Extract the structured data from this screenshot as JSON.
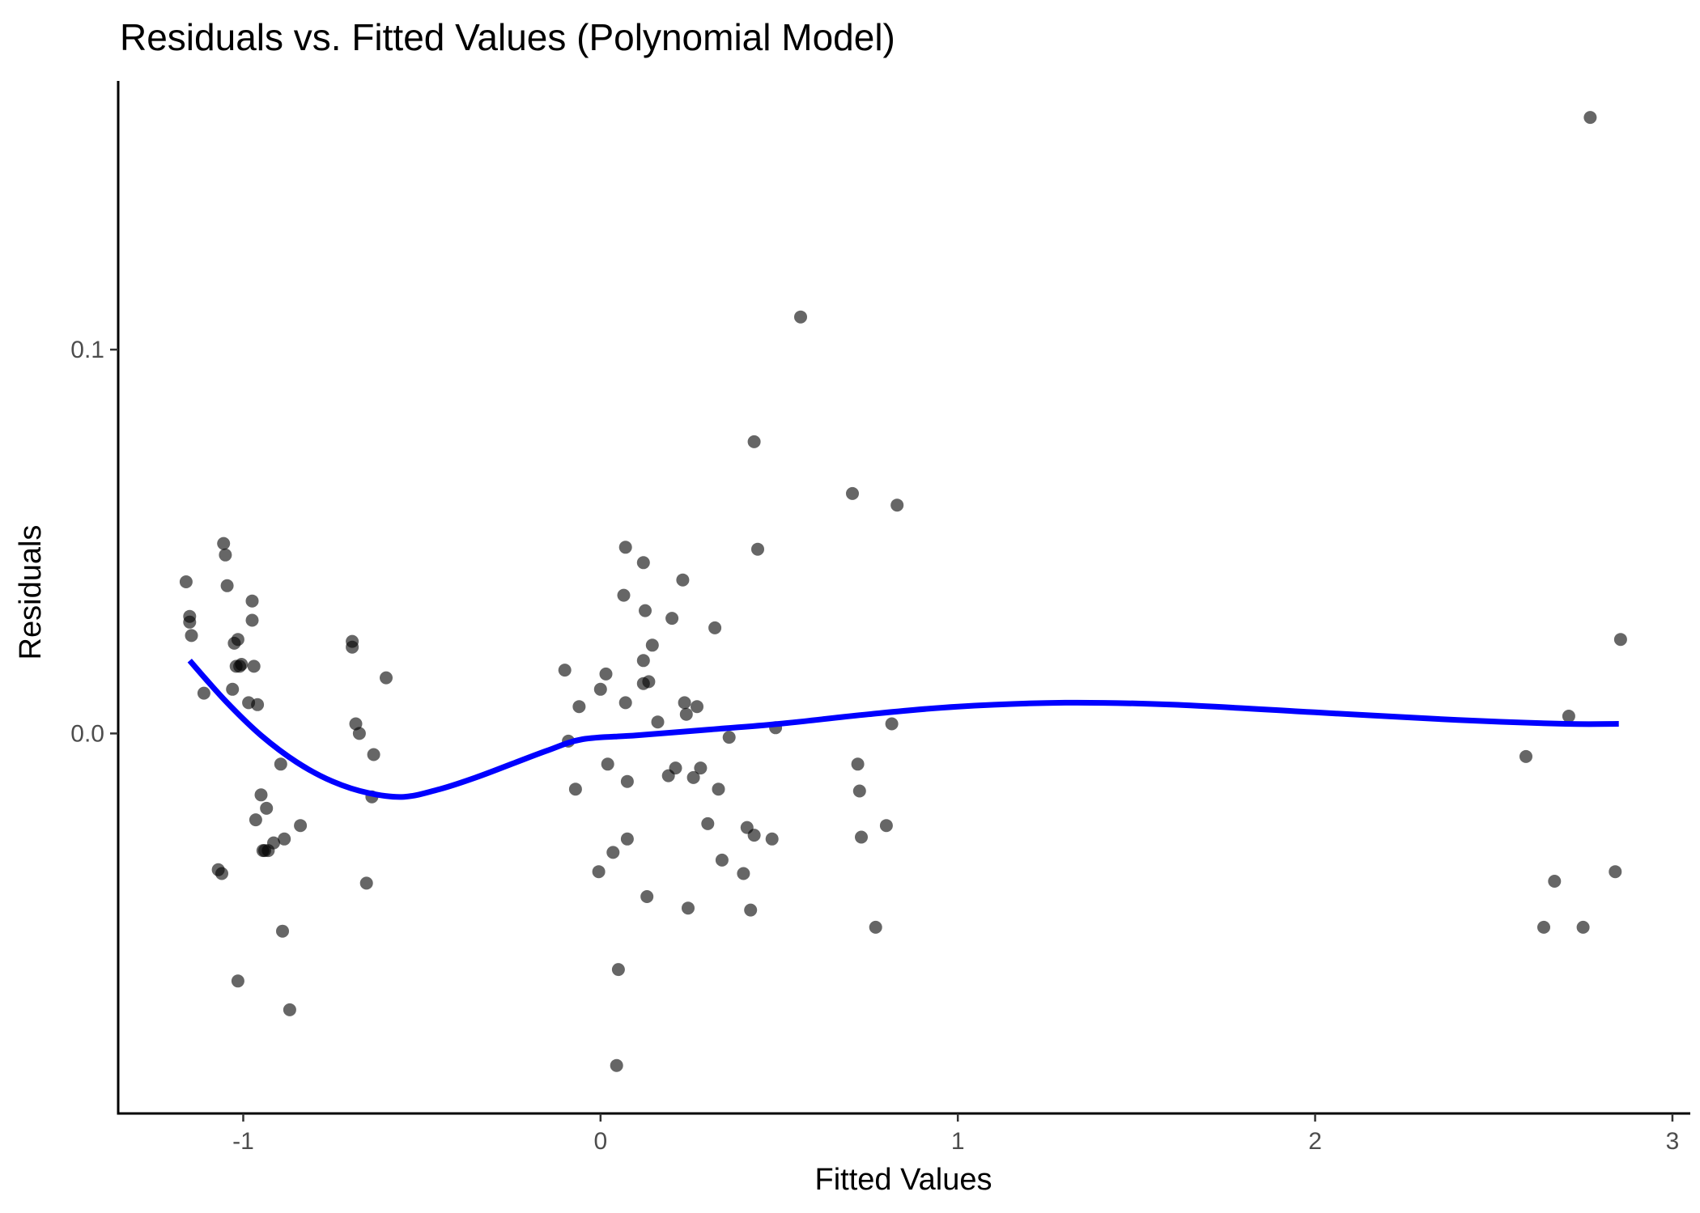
{
  "chart_data": {
    "type": "scatter",
    "title": "Residuals vs. Fitted Values (Polynomial Model)",
    "xlabel": "Fitted Values",
    "ylabel": "Residuals",
    "xlim": [
      -1.35,
      3.05
    ],
    "ylim": [
      -0.099,
      0.17
    ],
    "xticks": [
      {
        "value": -1,
        "label": "-1"
      },
      {
        "value": 0,
        "label": "0"
      },
      {
        "value": 1,
        "label": "1"
      },
      {
        "value": 2,
        "label": "2"
      },
      {
        "value": 3,
        "label": "3"
      }
    ],
    "yticks": [
      {
        "value": 0.0,
        "label": "0.0"
      },
      {
        "value": 0.1,
        "label": "0.1"
      }
    ],
    "grid": false,
    "legend": "none",
    "point_color": "#000000",
    "point_alpha": 0.6,
    "smooth_color": "#0000ff",
    "points": [
      {
        "x": -1.16,
        "y": 0.0395
      },
      {
        "x": -1.15,
        "y": 0.0305
      },
      {
        "x": -1.15,
        "y": 0.029
      },
      {
        "x": -1.145,
        "y": 0.0255
      },
      {
        "x": -1.11,
        "y": 0.0105
      },
      {
        "x": -1.07,
        "y": -0.0355
      },
      {
        "x": -1.06,
        "y": -0.0365
      },
      {
        "x": -1.055,
        "y": 0.0495
      },
      {
        "x": -1.05,
        "y": 0.0465
      },
      {
        "x": -1.045,
        "y": 0.0385
      },
      {
        "x": -1.03,
        "y": 0.0115
      },
      {
        "x": -1.025,
        "y": 0.0235
      },
      {
        "x": -1.02,
        "y": 0.0175
      },
      {
        "x": -1.015,
        "y": 0.0245
      },
      {
        "x": -1.015,
        "y": -0.0645
      },
      {
        "x": -1.01,
        "y": 0.0175
      },
      {
        "x": -1.005,
        "y": 0.018
      },
      {
        "x": -0.985,
        "y": 0.008
      },
      {
        "x": -0.975,
        "y": 0.0345
      },
      {
        "x": -0.975,
        "y": 0.0295
      },
      {
        "x": -0.97,
        "y": 0.0175
      },
      {
        "x": -0.965,
        "y": -0.0225
      },
      {
        "x": -0.96,
        "y": 0.0075
      },
      {
        "x": -0.95,
        "y": -0.016
      },
      {
        "x": -0.945,
        "y": -0.0305
      },
      {
        "x": -0.94,
        "y": -0.0305
      },
      {
        "x": -0.935,
        "y": -0.0195
      },
      {
        "x": -0.93,
        "y": -0.0305
      },
      {
        "x": -0.915,
        "y": -0.0285
      },
      {
        "x": -0.895,
        "y": -0.008
      },
      {
        "x": -0.89,
        "y": -0.0515
      },
      {
        "x": -0.885,
        "y": -0.0275
      },
      {
        "x": -0.87,
        "y": -0.072
      },
      {
        "x": -0.84,
        "y": -0.024
      },
      {
        "x": -0.695,
        "y": 0.024
      },
      {
        "x": -0.695,
        "y": 0.0225
      },
      {
        "x": -0.685,
        "y": 0.0025
      },
      {
        "x": -0.675,
        "y": 0.0
      },
      {
        "x": -0.655,
        "y": -0.039
      },
      {
        "x": -0.64,
        "y": -0.0165
      },
      {
        "x": -0.635,
        "y": -0.0055
      },
      {
        "x": -0.6,
        "y": 0.0145
      },
      {
        "x": -0.1,
        "y": 0.0165
      },
      {
        "x": -0.09,
        "y": -0.002
      },
      {
        "x": -0.07,
        "y": -0.0145
      },
      {
        "x": -0.06,
        "y": 0.007
      },
      {
        "x": -0.005,
        "y": -0.036
      },
      {
        "x": 0.0,
        "y": 0.0115
      },
      {
        "x": 0.015,
        "y": 0.0155
      },
      {
        "x": 0.02,
        "y": -0.008
      },
      {
        "x": 0.035,
        "y": -0.031
      },
      {
        "x": 0.045,
        "y": -0.0865
      },
      {
        "x": 0.05,
        "y": -0.0615
      },
      {
        "x": 0.065,
        "y": 0.036
      },
      {
        "x": 0.07,
        "y": 0.0485
      },
      {
        "x": 0.07,
        "y": 0.008
      },
      {
        "x": 0.075,
        "y": -0.0125
      },
      {
        "x": 0.075,
        "y": -0.0275
      },
      {
        "x": 0.12,
        "y": 0.0445
      },
      {
        "x": 0.12,
        "y": 0.019
      },
      {
        "x": 0.12,
        "y": 0.013
      },
      {
        "x": 0.125,
        "y": 0.032
      },
      {
        "x": 0.13,
        "y": -0.0425
      },
      {
        "x": 0.135,
        "y": 0.0135
      },
      {
        "x": 0.145,
        "y": 0.023
      },
      {
        "x": 0.16,
        "y": 0.003
      },
      {
        "x": 0.19,
        "y": -0.011
      },
      {
        "x": 0.2,
        "y": 0.03
      },
      {
        "x": 0.21,
        "y": -0.009
      },
      {
        "x": 0.23,
        "y": 0.04
      },
      {
        "x": 0.235,
        "y": 0.008
      },
      {
        "x": 0.24,
        "y": 0.005
      },
      {
        "x": 0.245,
        "y": -0.0455
      },
      {
        "x": 0.26,
        "y": -0.0115
      },
      {
        "x": 0.27,
        "y": 0.007
      },
      {
        "x": 0.28,
        "y": -0.009
      },
      {
        "x": 0.3,
        "y": -0.0235
      },
      {
        "x": 0.32,
        "y": 0.0275
      },
      {
        "x": 0.33,
        "y": -0.0145
      },
      {
        "x": 0.34,
        "y": -0.033
      },
      {
        "x": 0.36,
        "y": -0.001
      },
      {
        "x": 0.4,
        "y": -0.0365
      },
      {
        "x": 0.41,
        "y": -0.0245
      },
      {
        "x": 0.42,
        "y": -0.046
      },
      {
        "x": 0.43,
        "y": 0.076
      },
      {
        "x": 0.43,
        "y": -0.0265
      },
      {
        "x": 0.44,
        "y": 0.048
      },
      {
        "x": 0.48,
        "y": -0.0275
      },
      {
        "x": 0.49,
        "y": 0.0015
      },
      {
        "x": 0.56,
        "y": 0.1085
      },
      {
        "x": 0.705,
        "y": 0.0625
      },
      {
        "x": 0.72,
        "y": -0.008
      },
      {
        "x": 0.725,
        "y": -0.015
      },
      {
        "x": 0.73,
        "y": -0.027
      },
      {
        "x": 0.77,
        "y": -0.0505
      },
      {
        "x": 0.8,
        "y": -0.024
      },
      {
        "x": 0.815,
        "y": 0.0025
      },
      {
        "x": 0.83,
        "y": 0.0595
      },
      {
        "x": 2.59,
        "y": -0.006
      },
      {
        "x": 2.64,
        "y": -0.0505
      },
      {
        "x": 2.67,
        "y": -0.0385
      },
      {
        "x": 2.71,
        "y": 0.0045
      },
      {
        "x": 2.75,
        "y": -0.0505
      },
      {
        "x": 2.77,
        "y": 0.1605
      },
      {
        "x": 2.84,
        "y": -0.036
      },
      {
        "x": 2.855,
        "y": 0.0245
      }
    ],
    "smooth": [
      {
        "x": -1.15,
        "y": 0.019
      },
      {
        "x": -1.05,
        "y": 0.0085
      },
      {
        "x": -0.95,
        "y": -0.0005
      },
      {
        "x": -0.85,
        "y": -0.0075
      },
      {
        "x": -0.75,
        "y": -0.0125
      },
      {
        "x": -0.65,
        "y": -0.0155
      },
      {
        "x": -0.55,
        "y": -0.0165
      },
      {
        "x": -0.45,
        "y": -0.0145
      },
      {
        "x": -0.35,
        "y": -0.0115
      },
      {
        "x": -0.25,
        "y": -0.008
      },
      {
        "x": -0.15,
        "y": -0.0045
      },
      {
        "x": -0.05,
        "y": -0.0015
      },
      {
        "x": 0.1,
        "y": -0.0005
      },
      {
        "x": 0.3,
        "y": 0.001
      },
      {
        "x": 0.5,
        "y": 0.0025
      },
      {
        "x": 0.75,
        "y": 0.005
      },
      {
        "x": 1.0,
        "y": 0.007
      },
      {
        "x": 1.3,
        "y": 0.008
      },
      {
        "x": 1.6,
        "y": 0.0075
      },
      {
        "x": 2.0,
        "y": 0.0055
      },
      {
        "x": 2.4,
        "y": 0.0035
      },
      {
        "x": 2.7,
        "y": 0.0025
      },
      {
        "x": 2.85,
        "y": 0.0025
      }
    ]
  }
}
